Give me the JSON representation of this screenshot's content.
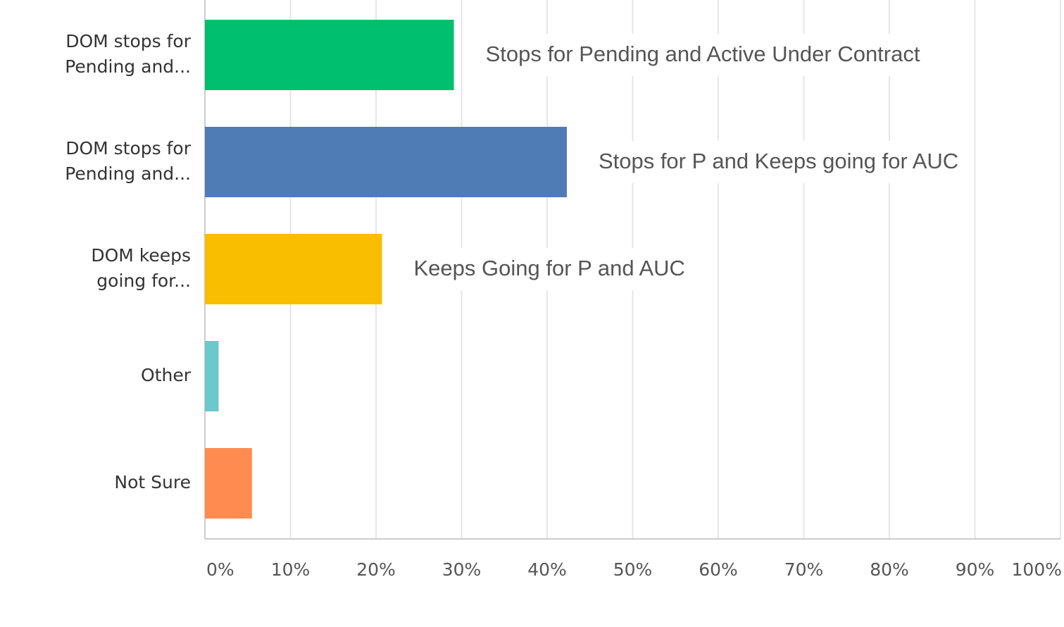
{
  "chart_data": {
    "type": "bar",
    "orientation": "horizontal",
    "categories": [
      [
        "DOM stops for",
        "Pending and..."
      ],
      [
        "DOM stops for",
        "Pending and..."
      ],
      [
        "DOM keeps",
        "going for..."
      ],
      [
        "Other"
      ],
      [
        "Not Sure"
      ]
    ],
    "values": [
      29.1,
      42.3,
      20.7,
      1.6,
      5.5
    ],
    "colors": [
      "#00bf6f",
      "#507cb6",
      "#f9be00",
      "#6bc8cd",
      "#ff8b4f"
    ],
    "annotations": [
      "Stops for Pending and Active Under Contract",
      "Stops for P and Keeps going for AUC",
      "Keeps Going for P and AUC"
    ],
    "xlim": [
      0,
      100
    ],
    "xticks": [
      {
        "value": 0,
        "label": "0%"
      },
      {
        "value": 10,
        "label": "10%"
      },
      {
        "value": 20,
        "label": "20%"
      },
      {
        "value": 30,
        "label": "30%"
      },
      {
        "value": 40,
        "label": "40%"
      },
      {
        "value": 50,
        "label": "50%"
      },
      {
        "value": 60,
        "label": "60%"
      },
      {
        "value": 70,
        "label": "70%"
      },
      {
        "value": 80,
        "label": "80%"
      },
      {
        "value": 90,
        "label": "90%"
      },
      {
        "value": 100,
        "label": "100%"
      }
    ],
    "grid": true
  }
}
